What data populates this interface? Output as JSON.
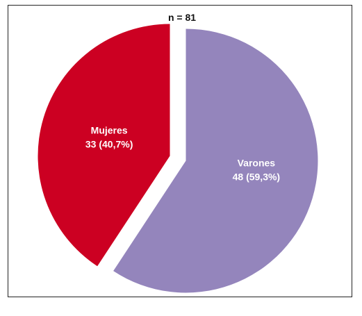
{
  "chart_data": {
    "type": "pie",
    "title": "n = 81",
    "slices": [
      {
        "label": "Varones",
        "value": 48,
        "value_text": "48 (59,3%)",
        "color": "#9485bc",
        "exploded": true
      },
      {
        "label": "Mujeres",
        "value": 33,
        "value_text": "33 (40,7%)",
        "color": "#cc0022",
        "exploded": true
      }
    ]
  }
}
